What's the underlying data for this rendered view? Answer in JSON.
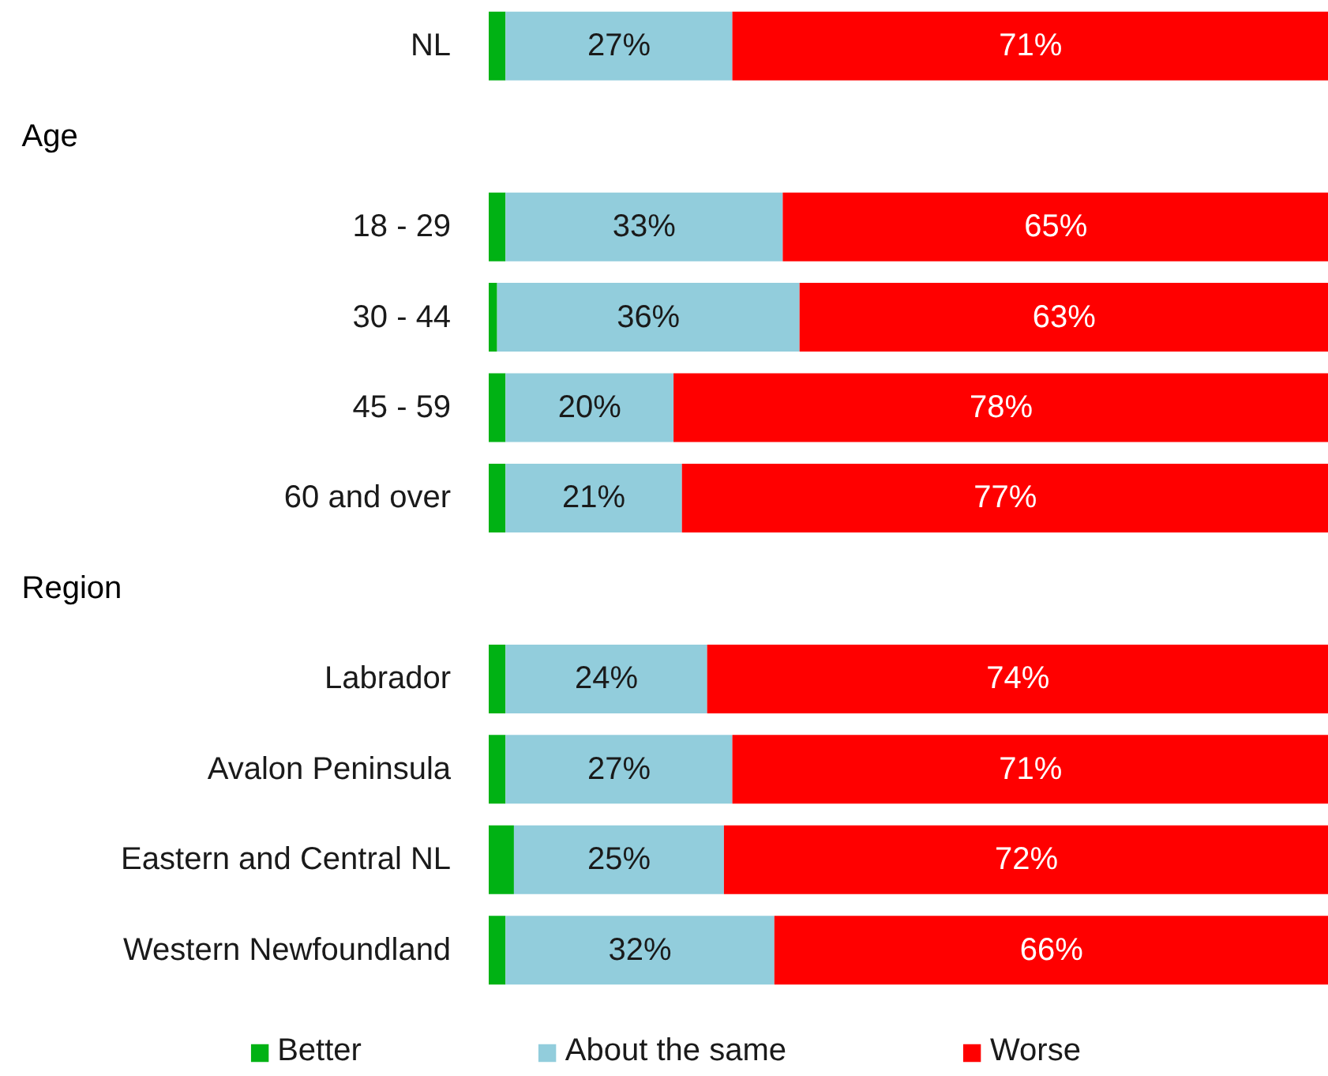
{
  "chart_data": {
    "type": "bar",
    "orientation": "horizontal",
    "stacked": true,
    "legend": "bottom",
    "grid": false,
    "categories": [
      "NL",
      null,
      "18 - 29",
      "30 - 44",
      "45 - 59",
      "60 and over",
      null,
      "Labrador",
      "Avalon Peninsula",
      "Eastern and Central NL",
      "Western Newfoundland"
    ],
    "annotations": [
      "Age",
      "Region"
    ],
    "series": [
      {
        "name": "Better",
        "color": "#00b214",
        "values": [
          2,
          null,
          2,
          1,
          2,
          2,
          null,
          2,
          2,
          3,
          2
        ],
        "value_labels": [
          null,
          null,
          null,
          null,
          null,
          null,
          null,
          null,
          null,
          null,
          null
        ]
      },
      {
        "name": "About the same",
        "color": "#92cddc",
        "values": [
          27,
          null,
          33,
          36,
          20,
          21,
          null,
          24,
          27,
          25,
          32
        ],
        "value_labels": [
          "27%",
          null,
          "33%",
          "36%",
          "20%",
          "21%",
          null,
          "24%",
          "27%",
          "25%",
          "32%"
        ]
      },
      {
        "name": "Worse",
        "color": "#ff0000",
        "values": [
          71,
          null,
          65,
          63,
          78,
          77,
          null,
          74,
          71,
          72,
          66
        ],
        "value_labels": [
          "71%",
          null,
          "65%",
          "63%",
          "78%",
          "77%",
          null,
          "74%",
          "71%",
          "72%",
          "66%"
        ]
      }
    ]
  }
}
